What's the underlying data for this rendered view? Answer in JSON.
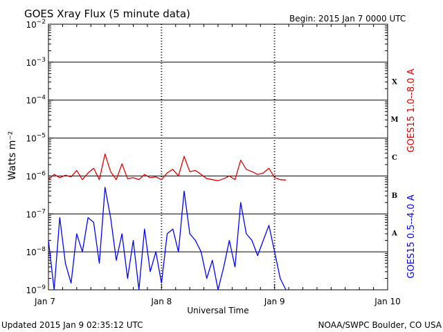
{
  "title": "GOES Xray Flux (5 minute data)",
  "begin": "Begin:  2015 Jan 7 0000 UTC",
  "footer_left": "Updated 2015 Jan  9 02:35:12 UTC",
  "footer_right": "NOAA/SWPC Boulder, CO USA",
  "colors": {
    "long": "#e00000",
    "short": "#0000ff",
    "grid": "#000000"
  },
  "chart_data": {
    "type": "line",
    "title": "GOES Xray Flux (5 minute data)",
    "xlabel": "Universal Time",
    "ylabel": "Watts m⁻²",
    "yscale": "log",
    "ylim": [
      1e-09,
      0.01
    ],
    "xlim_days": [
      0,
      3
    ],
    "x_tick_labels": [
      "Jan 7",
      "Jan 8",
      "Jan 9",
      "Jan 10"
    ],
    "y_tick_exponents": [
      -9,
      -8,
      -7,
      -6,
      -5,
      -4,
      -3,
      -2
    ],
    "flare_classes": [
      {
        "label": "A",
        "exp": -8
      },
      {
        "label": "B",
        "exp": -7
      },
      {
        "label": "C",
        "exp": -6
      },
      {
        "label": "M",
        "exp": -5
      },
      {
        "label": "X",
        "exp": -4
      }
    ],
    "series": [
      {
        "name": "GOES15 1.0--8.0 A",
        "color": "#e00000",
        "x": [
          0.0,
          0.05,
          0.1,
          0.15,
          0.2,
          0.25,
          0.3,
          0.35,
          0.4,
          0.45,
          0.5,
          0.55,
          0.6,
          0.65,
          0.7,
          0.75,
          0.8,
          0.85,
          0.9,
          0.95,
          1.0,
          1.05,
          1.1,
          1.15,
          1.2,
          1.25,
          1.3,
          1.35,
          1.4,
          1.45,
          1.5,
          1.55,
          1.6,
          1.65,
          1.7,
          1.75,
          1.8,
          1.85,
          1.9,
          1.95,
          2.0,
          2.05,
          2.1
        ],
        "y": [
          8e-07,
          1.1e-06,
          9e-07,
          1.05e-06,
          9.5e-07,
          1.4e-06,
          8e-07,
          1.2e-06,
          1.6e-06,
          8e-07,
          3.8e-06,
          1.3e-06,
          8e-07,
          2.1e-06,
          8.5e-07,
          9e-07,
          8e-07,
          1.1e-06,
          9e-07,
          9.5e-07,
          8e-07,
          1.2e-06,
          1.5e-06,
          1e-06,
          3.3e-06,
          1.3e-06,
          1.4e-06,
          1.1e-06,
          8.5e-07,
          8e-07,
          7.5e-07,
          8.5e-07,
          1e-06,
          8e-07,
          2.6e-06,
          1.5e-06,
          1.3e-06,
          1.1e-06,
          1.2e-06,
          1.6e-06,
          9e-07,
          8e-07,
          7.8e-07
        ]
      },
      {
        "name": "GOES15 0.5--4.0 A",
        "color": "#0000ff",
        "x": [
          0.0,
          0.05,
          0.1,
          0.15,
          0.2,
          0.25,
          0.3,
          0.35,
          0.4,
          0.45,
          0.5,
          0.55,
          0.6,
          0.65,
          0.7,
          0.75,
          0.8,
          0.85,
          0.9,
          0.95,
          1.0,
          1.05,
          1.1,
          1.15,
          1.2,
          1.25,
          1.3,
          1.35,
          1.4,
          1.45,
          1.5,
          1.55,
          1.6,
          1.65,
          1.7,
          1.75,
          1.8,
          1.85,
          1.9,
          1.95,
          2.0,
          2.05,
          2.1
        ],
        "y": [
          2e-08,
          1e-09,
          8e-08,
          5e-09,
          1.5e-09,
          3e-08,
          1e-08,
          8e-08,
          6e-08,
          5e-09,
          5e-07,
          8e-08,
          6e-09,
          3e-08,
          2e-09,
          2e-08,
          1e-09,
          4e-08,
          3e-09,
          1e-08,
          1.5e-09,
          3e-08,
          4e-08,
          1e-08,
          4e-07,
          3e-08,
          2e-08,
          1e-08,
          2e-09,
          6e-09,
          1e-09,
          4e-09,
          2e-08,
          4e-09,
          2e-07,
          3e-08,
          2e-08,
          8e-09,
          2e-08,
          5e-08,
          1e-08,
          2e-09,
          1e-09
        ]
      }
    ]
  }
}
